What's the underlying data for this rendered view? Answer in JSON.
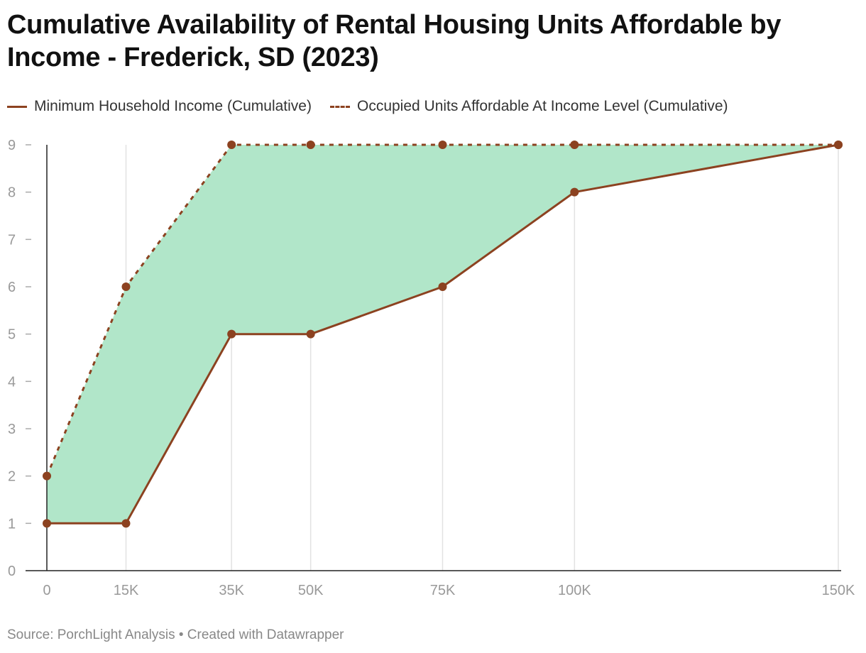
{
  "chart_data": {
    "type": "line",
    "title": "Cumulative Availability of Rental Housing Units Affordable by Income -  Frederick, SD (2023)",
    "x": [
      0,
      15000,
      35000,
      50000,
      75000,
      100000,
      150000
    ],
    "x_tick_labels": [
      "0",
      "15K",
      "35K",
      "50K",
      "75K",
      "100K",
      "150K"
    ],
    "xlim": [
      0,
      150000
    ],
    "ylim": [
      0,
      9
    ],
    "y_ticks": [
      "0",
      "1",
      "2",
      "3",
      "4",
      "5",
      "6",
      "7",
      "8",
      "9"
    ],
    "grid": "vertical",
    "legend_position": "top-left",
    "fill_between": {
      "color": "#b1e6c9"
    },
    "series": [
      {
        "name": "Minimum Household Income (Cumulative)",
        "style": "solid",
        "color": "#8c4220",
        "values": [
          1,
          1,
          5,
          5,
          6,
          8,
          9
        ]
      },
      {
        "name": "Occupied Units Affordable At Income Level (Cumulative)",
        "style": "dashed",
        "color": "#8c4220",
        "values": [
          2,
          6,
          9,
          9,
          9,
          9,
          9
        ]
      }
    ]
  },
  "footer": {
    "text": "Source: PorchLight Analysis • Created with Datawrapper"
  }
}
